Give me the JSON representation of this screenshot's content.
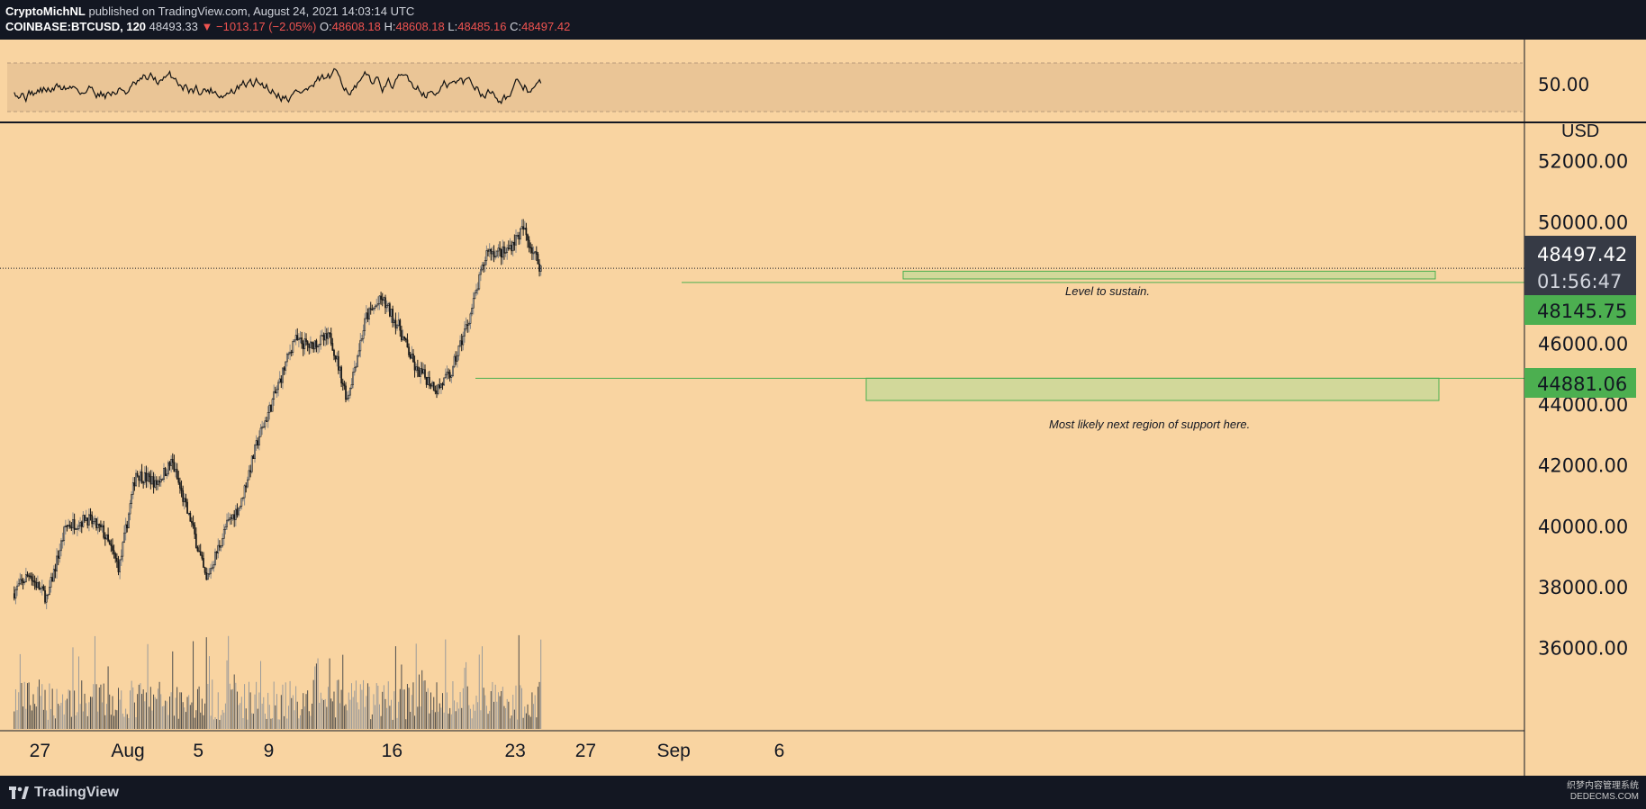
{
  "header": {
    "author": "CryptoMichNL",
    "published_text": "published on TradingView.com, August 24, 2021 14:03:14 UTC",
    "symbol": "COINBASE:BTCUSD, 120",
    "last": "48493.33",
    "change": "▼ −1013.17 (−2.05%)",
    "o_label": "O:",
    "o_value": "48608.18",
    "h_label": "H:",
    "h_value": "48608.18",
    "l_label": "L:",
    "l_value": "48485.16",
    "c_label": "C:",
    "c_value": "48497.42"
  },
  "footer": {
    "brand": "TradingView",
    "watermark_line1": "织梦内容管理系统",
    "watermark_line2": "DEDECMS.COM"
  },
  "colors": {
    "background": "#f9d4a1",
    "frame": "#131722",
    "candle": "#1a1a1a",
    "wick_up": "#8a8a8a",
    "zone_fill": "#c8d898",
    "zone_border": "#4caf50",
    "price_tag_dark": "#363a45",
    "price_tag_green": "#4caf50"
  },
  "annotations": {
    "zone1_text": "Level to sustain.",
    "zone2_text": "Most likely next region of support here.",
    "zone1_range": [
      48145.75,
      48400
    ],
    "zone2_range": [
      44150,
      44881.06
    ]
  },
  "price_tags": {
    "current": "48497.42",
    "countdown": "01:56:47",
    "zone1": "48145.75",
    "zone2": "44881.06"
  },
  "rsi_panel": {
    "level_label": "50.00",
    "band": [
      30,
      70
    ]
  },
  "chart_data": {
    "type": "candlestick",
    "symbol": "BTCUSD",
    "ylabel": "USD",
    "ylim": [
      35000,
      53000
    ],
    "yticks": [
      "36000.00",
      "38000.00",
      "40000.00",
      "42000.00",
      "44000.00",
      "46000.00",
      "50000.00",
      "52000.00"
    ],
    "xticks": [
      "27",
      "Aug",
      "5",
      "9",
      "16",
      "23",
      "27",
      "Sep",
      "6"
    ],
    "close_series": [
      {
        "date": "Jul 26",
        "close": 38500
      },
      {
        "date": "Jul 27",
        "close": 37600
      },
      {
        "date": "Jul 28",
        "close": 40000
      },
      {
        "date": "Jul 29",
        "close": 40200
      },
      {
        "date": "Jul 30",
        "close": 39900
      },
      {
        "date": "Jul 31",
        "close": 38700
      },
      {
        "date": "Aug 1",
        "close": 41800
      },
      {
        "date": "Aug 2",
        "close": 41500
      },
      {
        "date": "Aug 3",
        "close": 42100
      },
      {
        "date": "Aug 4",
        "close": 40300
      },
      {
        "date": "Aug 5",
        "close": 38200
      },
      {
        "date": "Aug 6",
        "close": 39800
      },
      {
        "date": "Aug 7",
        "close": 40800
      },
      {
        "date": "Aug 8",
        "close": 43000
      },
      {
        "date": "Aug 9",
        "close": 44500
      },
      {
        "date": "Aug 10",
        "close": 46200
      },
      {
        "date": "Aug 11",
        "close": 45900
      },
      {
        "date": "Aug 12",
        "close": 46200
      },
      {
        "date": "Aug 13",
        "close": 44200
      },
      {
        "date": "Aug 14",
        "close": 46700
      },
      {
        "date": "Aug 15",
        "close": 47500
      },
      {
        "date": "Aug 16",
        "close": 46500
      },
      {
        "date": "Aug 17",
        "close": 45000
      },
      {
        "date": "Aug 18",
        "close": 44600
      },
      {
        "date": "Aug 19",
        "close": 45100
      },
      {
        "date": "Aug 20",
        "close": 47000
      },
      {
        "date": "Aug 21",
        "close": 49200
      },
      {
        "date": "Aug 22",
        "close": 49000
      },
      {
        "date": "Aug 23",
        "close": 49800
      },
      {
        "date": "Aug 24",
        "close": 48497.42
      }
    ]
  }
}
